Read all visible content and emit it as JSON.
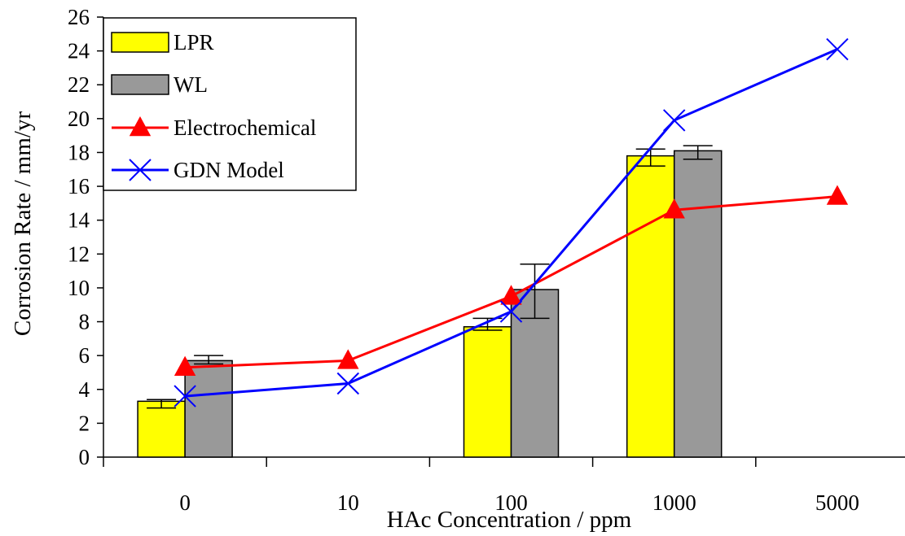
{
  "chart_data": {
    "type": "bar",
    "title": "",
    "xlabel": "HAc Concentration / ppm",
    "ylabel": "Corrosion Rate / mm/yr",
    "categories": [
      "0",
      "10",
      "100",
      "1000",
      "5000"
    ],
    "ylim": [
      0,
      26
    ],
    "yticks": [
      0,
      2,
      4,
      6,
      8,
      10,
      12,
      14,
      16,
      18,
      20,
      22,
      24,
      26
    ],
    "grid": false,
    "legend_position": "top-left",
    "series": [
      {
        "name": "LPR",
        "kind": "bar",
        "color": "#ffff00",
        "values": [
          3.3,
          null,
          7.7,
          17.8,
          null
        ],
        "error_low": [
          2.9,
          null,
          7.5,
          17.2,
          null
        ],
        "error_high": [
          3.4,
          null,
          8.2,
          18.2,
          null
        ]
      },
      {
        "name": "WL",
        "kind": "bar",
        "color": "#999999",
        "values": [
          5.7,
          null,
          9.9,
          18.1,
          null
        ],
        "error_low": [
          5.5,
          null,
          8.2,
          17.6,
          null
        ],
        "error_high": [
          6.0,
          null,
          11.4,
          18.4,
          null
        ]
      },
      {
        "name": "Electrochemical",
        "kind": "line",
        "marker": "triangle",
        "color": "#ff0000",
        "values": [
          5.3,
          5.7,
          9.5,
          14.6,
          15.4
        ]
      },
      {
        "name": "GDN Model",
        "kind": "line",
        "marker": "x",
        "color": "#0000ff",
        "values": [
          3.6,
          4.35,
          8.6,
          19.9,
          24.1
        ]
      }
    ]
  }
}
